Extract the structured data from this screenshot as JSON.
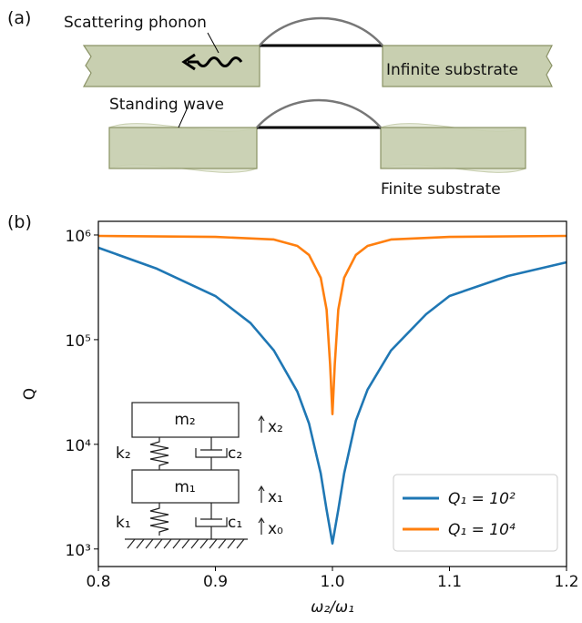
{
  "panel_a": {
    "label": "(a)",
    "scattering": "Scattering phonon",
    "infinite": "Infinite substrate",
    "standing": "Standing wave",
    "finite": "Finite substrate"
  },
  "inset": {
    "m2": "m₂",
    "m1": "m₁",
    "k2": "k₂",
    "k1": "k₁",
    "c2": "c₂",
    "c1": "c₁",
    "x2": "x₂",
    "x1": "x₁",
    "x0": "x₀"
  },
  "chart_data": {
    "type": "line",
    "panel_label": "(b)",
    "x_label": "ω₂/ω₁",
    "y_label": "Q",
    "log_y": true,
    "legend": "lower right",
    "xlim": [
      0.8,
      1.2
    ],
    "ylim": [
      680,
      1350000
    ],
    "xticks": [
      0.8,
      0.9,
      {
        "value": 1,
        "label": "1.0"
      },
      1.1,
      1.2
    ],
    "yticks": [
      {
        "value": 1000,
        "label": "10³"
      },
      {
        "value": 10000,
        "label": "10⁴"
      },
      {
        "value": 100000,
        "label": "10⁵"
      },
      {
        "value": 1000000,
        "label": "10⁶"
      }
    ],
    "series": [
      {
        "name": "Q₁ = 10²",
        "color": "#1f77b4",
        "x": [
          0.8,
          0.85,
          0.9,
          0.93,
          0.95,
          0.97,
          0.98,
          0.99,
          0.995,
          1,
          1.005,
          1.01,
          1.02,
          1.03,
          1.05,
          1.08,
          1.1,
          1.15,
          1.2
        ],
        "values": [
          755000,
          476000,
          261000,
          144000,
          78700,
          31900,
          15800,
          5270,
          2370,
          1130,
          2370,
          5270,
          16800,
          33300,
          78700,
          175000,
          261000,
          406000,
          548000
        ]
      },
      {
        "name": "Q₁ = 10⁴",
        "color": "#ff7f0e",
        "x": [
          0.8,
          0.9,
          0.95,
          0.97,
          0.98,
          0.99,
          0.995,
          0.998,
          1,
          1.002,
          1.005,
          1.01,
          1.02,
          1.03,
          1.05,
          1.1,
          1.2
        ],
        "values": [
          980000,
          960000,
          905000,
          786000,
          644000,
          390000,
          194000,
          58200,
          19400,
          58200,
          194000,
          390000,
          644000,
          786000,
          905000,
          960000,
          980000
        ]
      }
    ]
  }
}
